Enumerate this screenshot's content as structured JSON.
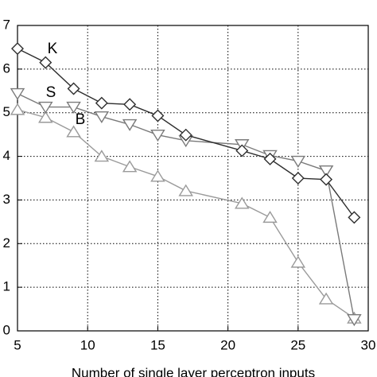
{
  "chart_data": {
    "type": "line",
    "x_label": "Number of single layer perceptron inputs",
    "xlim": [
      5,
      30
    ],
    "xticks": [
      5,
      10,
      15,
      20,
      25,
      30
    ],
    "ylim": [
      0,
      7
    ],
    "yticks": [
      0,
      1,
      2,
      3,
      4,
      5,
      6,
      7
    ],
    "grid": true,
    "x": [
      5,
      7,
      9,
      11,
      13,
      15,
      17,
      21,
      23,
      25,
      27,
      29
    ],
    "series": [
      {
        "name": "K",
        "color": "#2e2e2e",
        "marker": "diamond",
        "values": [
          6.47,
          6.15,
          5.55,
          5.22,
          5.19,
          4.93,
          4.49,
          4.13,
          3.94,
          3.5,
          3.47,
          2.6
        ]
      },
      {
        "name": "S",
        "color": "#7a7a7a",
        "marker": "triangle-down",
        "values": [
          5.44,
          5.13,
          5.13,
          4.91,
          4.73,
          4.49,
          4.36,
          4.27,
          4.02,
          3.89,
          3.67,
          0.26
        ]
      },
      {
        "name": "B",
        "color": "#9a9a9a",
        "marker": "triangle-up",
        "values": [
          5.07,
          4.89,
          4.56,
          4.0,
          3.76,
          3.54,
          3.21,
          2.92,
          2.6,
          1.57,
          0.73,
          0.29
        ]
      }
    ]
  }
}
